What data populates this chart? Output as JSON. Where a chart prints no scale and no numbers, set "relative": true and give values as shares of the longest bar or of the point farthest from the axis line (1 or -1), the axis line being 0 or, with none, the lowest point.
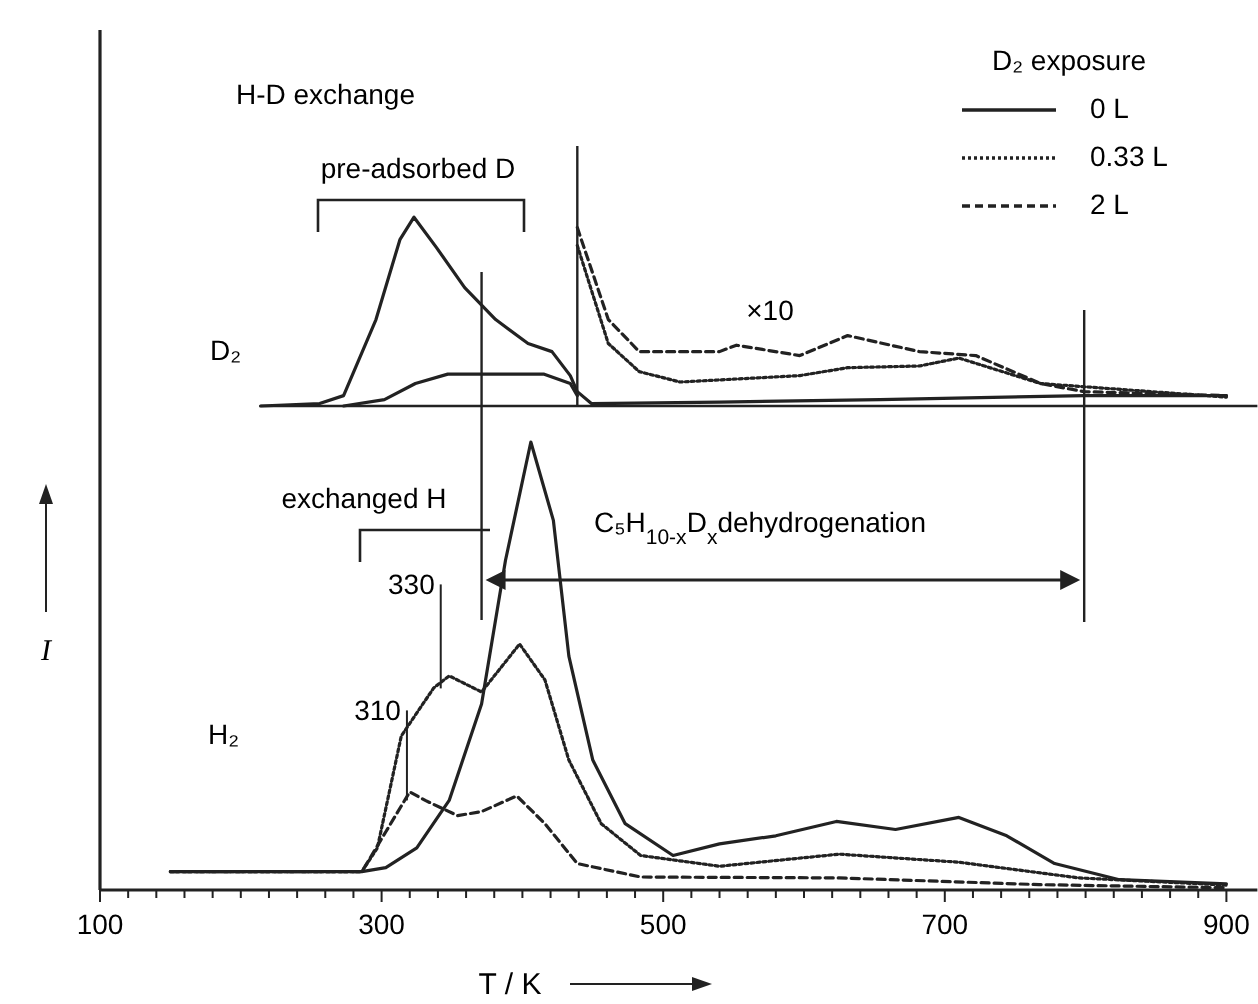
{
  "chart_data": [
    {
      "type": "line",
      "title": "H-D exchange",
      "relative": true,
      "xlim": [
        100,
        922
      ],
      "tick_labels": false,
      "legend": "top right",
      "legend_title": "D₂ exposure",
      "annotations": [
        "pre-adsorbed D",
        "×10",
        "D₂"
      ],
      "ref_lines": [
        {
          "axis": "x",
          "value": 439
        }
      ],
      "series": [
        {
          "name": "0 L",
          "color": "#222222",
          "line_style": "solid",
          "x": [
            214,
            256,
            273,
            296,
            313,
            323,
            339,
            359,
            381,
            404,
            421,
            434,
            439,
            449,
            540,
            654,
            799,
            900
          ],
          "values": [
            0,
            0.013,
            0.055,
            0.458,
            0.881,
            1,
            0.839,
            0.627,
            0.458,
            0.331,
            0.288,
            0.161,
            0.076,
            0.013,
            0.021,
            0.034,
            0.055,
            0.055
          ]
        },
        {
          "name": "0.33 L",
          "color": "#222222",
          "line_style": "dotted",
          "x": [
            439,
            461,
            483,
            512,
            597,
            631,
            682,
            710,
            768,
            900
          ],
          "values": [
            0.85,
            0.331,
            0.182,
            0.127,
            0.161,
            0.203,
            0.212,
            0.254,
            0.119,
            0.047
          ]
        },
        {
          "name": "2 L",
          "color": "#222222",
          "line_style": "dashed",
          "x": [
            439,
            461,
            483,
            540,
            552,
            597,
            631,
            682,
            722,
            768,
            799,
            900
          ],
          "values": [
            0.945,
            0.458,
            0.288,
            0.288,
            0.322,
            0.267,
            0.373,
            0.288,
            0.267,
            0.119,
            0.076,
            0.055
          ]
        },
        {
          "color": "#222222",
          "line_style": "solid",
          "x": [
            273,
            302,
            324,
            347,
            415,
            434,
            439
          ],
          "values": [
            0,
            0.034,
            0.119,
            0.169,
            0.169,
            0.119,
            0.055
          ]
        }
      ]
    },
    {
      "type": "line",
      "relative": true,
      "xlim": [
        100,
        922
      ],
      "tick_labels": "x",
      "xlabel": "T / K",
      "ylabel": "I",
      "xticks": [
        100,
        {
          "value": 120,
          "label": null
        },
        {
          "value": 140,
          "label": null
        },
        {
          "value": 160,
          "label": null
        },
        {
          "value": 180,
          "label": null
        },
        {
          "value": 200,
          "label": null
        },
        {
          "value": 220,
          "label": null
        },
        {
          "value": 240,
          "label": null
        },
        {
          "value": 260,
          "label": null
        },
        {
          "value": 280,
          "label": null
        },
        300,
        {
          "value": 320,
          "label": null
        },
        {
          "value": 340,
          "label": null
        },
        {
          "value": 360,
          "label": null
        },
        {
          "value": 380,
          "label": null
        },
        {
          "value": 400,
          "label": null
        },
        {
          "value": 420,
          "label": null
        },
        {
          "value": 440,
          "label": null
        },
        {
          "value": 460,
          "label": null
        },
        {
          "value": 480,
          "label": null
        },
        500,
        {
          "value": 520,
          "label": null
        },
        {
          "value": 540,
          "label": null
        },
        {
          "value": 560,
          "label": null
        },
        {
          "value": 580,
          "label": null
        },
        {
          "value": 600,
          "label": null
        },
        {
          "value": 620,
          "label": null
        },
        {
          "value": 640,
          "label": null
        },
        {
          "value": 660,
          "label": null
        },
        {
          "value": 680,
          "label": null
        },
        700,
        {
          "value": 720,
          "label": null
        },
        {
          "value": 740,
          "label": null
        },
        {
          "value": 760,
          "label": null
        },
        {
          "value": 780,
          "label": null
        },
        {
          "value": 800,
          "label": null
        },
        {
          "value": 820,
          "label": null
        },
        {
          "value": 840,
          "label": null
        },
        {
          "value": 860,
          "label": null
        },
        {
          "value": 880,
          "label": null
        },
        900
      ],
      "annotations": [
        "exchanged H",
        {
          "text": "330",
          "x": 342,
          "y": 0.45
        },
        {
          "text": "310",
          "x": 318,
          "y": 0.2
        },
        "C₅H$_{10-x}$D$_{x}$dehydrogenation",
        "H₂"
      ],
      "ref_lines": [
        {
          "axis": "x",
          "value": 371
        },
        {
          "axis": "x",
          "value": 799
        }
      ],
      "series": [
        {
          "color": "#222222",
          "line_style": "solid",
          "x": [
            150,
            286,
            303,
            325,
            348,
            371,
            388,
            406,
            422,
            433,
            450,
            473,
            507,
            540,
            580,
            623,
            665,
            710,
            744,
            778,
            824,
            900
          ],
          "values": [
            0.041,
            0.041,
            0.05,
            0.094,
            0.2,
            0.415,
            0.736,
            1,
            0.825,
            0.522,
            0.29,
            0.148,
            0.077,
            0.103,
            0.121,
            0.153,
            0.135,
            0.162,
            0.121,
            0.059,
            0.023,
            0.014
          ]
        },
        {
          "color": "#222222",
          "line_style": "dotted",
          "x": [
            150,
            286,
            297,
            314,
            337,
            348,
            371,
            398,
            416,
            433,
            456,
            484,
            540,
            625,
            710,
            795,
            900
          ],
          "values": [
            0.041,
            0.041,
            0.094,
            0.344,
            0.451,
            0.478,
            0.442,
            0.549,
            0.469,
            0.29,
            0.148,
            0.077,
            0.053,
            0.08,
            0.062,
            0.027,
            0.011
          ]
        },
        {
          "color": "#222222",
          "line_style": "dashed",
          "x": [
            150,
            286,
            303,
            320,
            331,
            354,
            371,
            396,
            416,
            439,
            484,
            625,
            767,
            900
          ],
          "values": [
            0.041,
            0.041,
            0.13,
            0.219,
            0.2,
            0.166,
            0.175,
            0.21,
            0.148,
            0.059,
            0.029,
            0.027,
            0.012,
            0.005
          ]
        }
      ]
    }
  ]
}
